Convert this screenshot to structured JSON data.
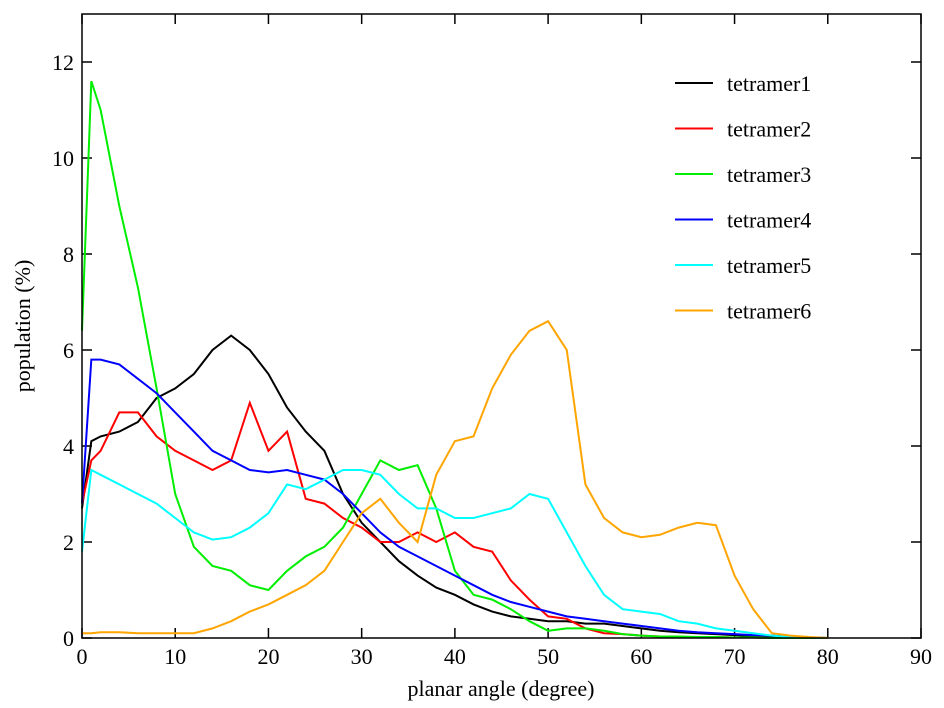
{
  "chart_data": {
    "type": "line",
    "x_label": "planar angle (degree)",
    "y_label": "population (%)",
    "x": [
      0,
      1,
      2,
      4,
      6,
      8,
      10,
      12,
      14,
      16,
      18,
      20,
      22,
      24,
      26,
      28,
      30,
      32,
      34,
      36,
      38,
      40,
      42,
      44,
      46,
      48,
      50,
      52,
      54,
      56,
      58,
      60,
      62,
      64,
      66,
      68,
      70,
      72,
      74,
      76,
      78,
      80
    ],
    "series": [
      {
        "name": "tetramer1",
        "color": "#000000",
        "values": [
          2.7,
          4.1,
          4.2,
          4.3,
          4.5,
          5.0,
          5.2,
          5.5,
          6.0,
          6.3,
          6.0,
          5.5,
          4.8,
          4.3,
          3.9,
          3.0,
          2.4,
          2.0,
          1.6,
          1.3,
          1.05,
          0.9,
          0.7,
          0.55,
          0.45,
          0.4,
          0.35,
          0.35,
          0.3,
          0.3,
          0.25,
          0.2,
          0.15,
          0.12,
          0.1,
          0.08,
          0.06,
          0.04,
          0.03,
          0.02,
          0.01,
          0
        ]
      },
      {
        "name": "tetramer2",
        "color": "#ff0000",
        "values": [
          2.8,
          3.7,
          3.9,
          4.7,
          4.7,
          4.2,
          3.9,
          3.7,
          3.5,
          3.7,
          4.9,
          3.9,
          4.3,
          2.9,
          2.8,
          2.5,
          2.3,
          2.0,
          2.0,
          2.2,
          2.0,
          2.2,
          1.9,
          1.8,
          1.2,
          0.8,
          0.45,
          0.4,
          0.2,
          0.1,
          0.08,
          0.05,
          0.03,
          0.02,
          0.02,
          0.02,
          0.01,
          0.01,
          0,
          0,
          0,
          0
        ]
      },
      {
        "name": "tetramer3",
        "color": "#00ee00",
        "values": [
          6.4,
          11.6,
          11.0,
          9.0,
          7.3,
          5.2,
          3.0,
          1.9,
          1.5,
          1.4,
          1.1,
          1.0,
          1.4,
          1.7,
          1.9,
          2.3,
          3.0,
          3.7,
          3.5,
          3.6,
          2.7,
          1.4,
          0.9,
          0.8,
          0.6,
          0.35,
          0.15,
          0.2,
          0.2,
          0.15,
          0.08,
          0.05,
          0.03,
          0.03,
          0.02,
          0.02,
          0.01,
          0.01,
          0,
          0,
          0,
          0
        ]
      },
      {
        "name": "tetramer4",
        "color": "#0000ff",
        "values": [
          2.8,
          5.8,
          5.8,
          5.7,
          5.4,
          5.1,
          4.7,
          4.3,
          3.9,
          3.7,
          3.5,
          3.45,
          3.5,
          3.4,
          3.3,
          3.0,
          2.6,
          2.2,
          1.9,
          1.7,
          1.5,
          1.3,
          1.1,
          0.9,
          0.75,
          0.65,
          0.55,
          0.45,
          0.4,
          0.35,
          0.3,
          0.25,
          0.2,
          0.15,
          0.12,
          0.1,
          0.08,
          0.06,
          0.05,
          0.03,
          0.01,
          0
        ]
      },
      {
        "name": "tetramer5",
        "color": "#00ffff",
        "values": [
          1.8,
          3.5,
          3.4,
          3.2,
          3.0,
          2.8,
          2.5,
          2.2,
          2.05,
          2.1,
          2.3,
          2.6,
          3.2,
          3.1,
          3.3,
          3.5,
          3.5,
          3.4,
          3.0,
          2.7,
          2.7,
          2.5,
          2.5,
          2.6,
          2.7,
          3.0,
          2.9,
          2.2,
          1.5,
          0.9,
          0.6,
          0.55,
          0.5,
          0.35,
          0.3,
          0.2,
          0.15,
          0.1,
          0.05,
          0.02,
          0.01,
          0
        ]
      },
      {
        "name": "tetramer6",
        "color": "#ffa500",
        "values": [
          0.1,
          0.1,
          0.12,
          0.12,
          0.1,
          0.1,
          0.1,
          0.1,
          0.2,
          0.35,
          0.55,
          0.7,
          0.9,
          1.1,
          1.4,
          2.0,
          2.6,
          2.9,
          2.4,
          2.0,
          3.4,
          4.1,
          4.2,
          5.2,
          5.9,
          6.4,
          6.6,
          6.0,
          3.2,
          2.5,
          2.2,
          2.1,
          2.15,
          2.3,
          2.4,
          2.35,
          1.3,
          0.6,
          0.1,
          0.05,
          0.02,
          0
        ]
      }
    ],
    "xlim": [
      0,
      90
    ],
    "ylim": [
      0,
      13
    ],
    "xticks": [
      0,
      10,
      20,
      30,
      40,
      50,
      60,
      70,
      80,
      90
    ],
    "yticks": [
      0,
      2,
      4,
      6,
      8,
      10,
      12
    ],
    "legend": "upper right"
  }
}
